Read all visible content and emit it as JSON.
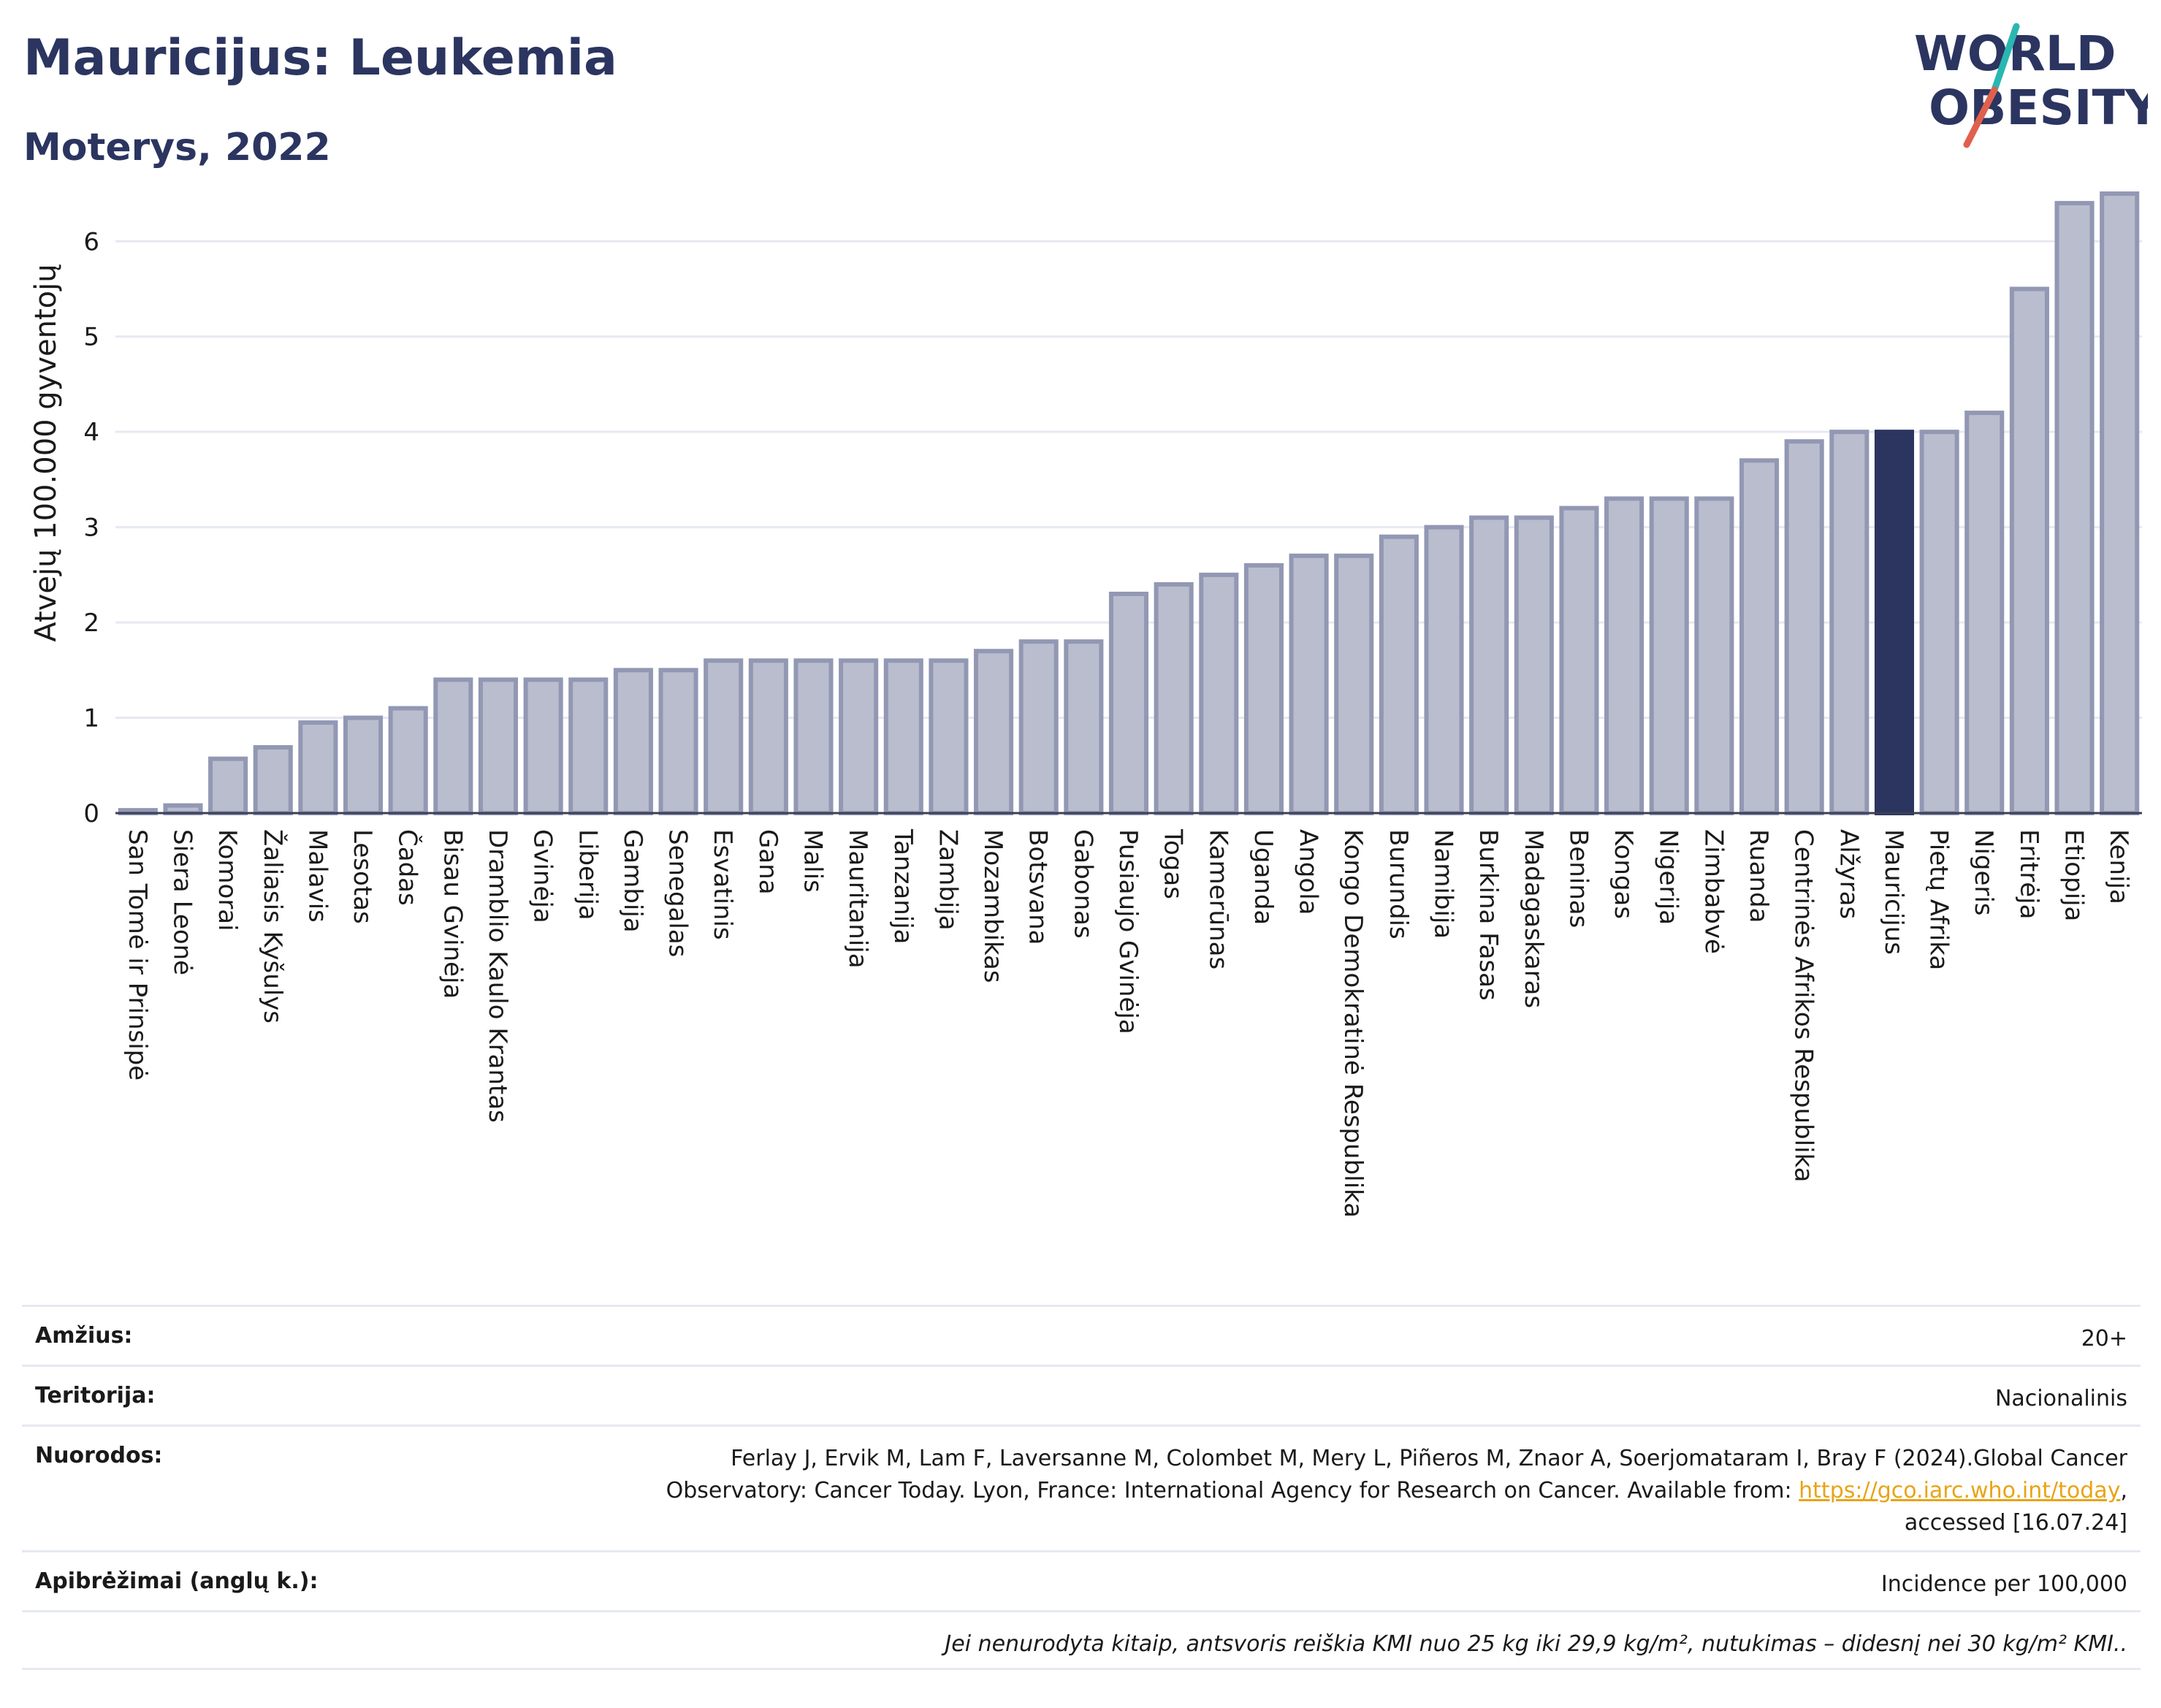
{
  "header": {
    "title": "Mauricijus: Leukemia",
    "subtitle": "Moterys, 2022"
  },
  "logo": {
    "line1": "WORLD",
    "line2": "OBESITY",
    "colors": {
      "text": "#2b3560",
      "slash_teal": "#2ab7b1",
      "slash_red": "#e0604e"
    }
  },
  "colors": {
    "bar_fill": "#b9bdcd",
    "bar_stroke": "#9298b3",
    "highlight": "#2b3560",
    "grid": "#e6e9f2",
    "title": "#2b3560"
  },
  "chart_data": {
    "type": "bar",
    "ylabel": "Atvejų 100.000 gyventojų",
    "ylim": [
      0,
      6.6
    ],
    "yticks": [
      0,
      1,
      2,
      3,
      4,
      5,
      6
    ],
    "grid": true,
    "highlight": "Mauricijus",
    "categories": [
      "San Tomė ir Prinsipė",
      "Siera Leonė",
      "Komorai",
      "Žaliasis Kyšulys",
      "Malavis",
      "Lesotas",
      "Čadas",
      "Bisau Gvinėja",
      "Dramblio Kaulo Krantas",
      "Gvinėja",
      "Liberija",
      "Gambija",
      "Senegalas",
      "Esvatinis",
      "Gana",
      "Malis",
      "Mauritanija",
      "Tanzanija",
      "Zambija",
      "Mozambikas",
      "Botsvana",
      "Gabonas",
      "Pusiaujo Gvinėja",
      "Togas",
      "Kamerūnas",
      "Uganda",
      "Angola",
      "Kongo Demokratinė Respublika",
      "Burundis",
      "Namibija",
      "Burkina Fasas",
      "Madagaskaras",
      "Beninas",
      "Kongas",
      "Nigerija",
      "Zimbabvė",
      "Ruanda",
      "Centrinės Afrikos Respublika",
      "Alžyras",
      "Mauricijus",
      "Pietų Afrika",
      "Nigeris",
      "Eritrėja",
      "Etiopija",
      "Kenija"
    ],
    "values": [
      0.03,
      0.08,
      0.57,
      0.69,
      0.95,
      1.0,
      1.1,
      1.4,
      1.4,
      1.4,
      1.4,
      1.5,
      1.5,
      1.6,
      1.6,
      1.6,
      1.6,
      1.6,
      1.6,
      1.7,
      1.8,
      1.8,
      2.3,
      2.4,
      2.5,
      2.6,
      2.7,
      2.7,
      2.9,
      3.0,
      3.1,
      3.1,
      3.2,
      3.3,
      3.3,
      3.3,
      3.7,
      3.9,
      4.0,
      4.0,
      4.0,
      4.2,
      5.5,
      6.4,
      6.5
    ]
  },
  "meta": {
    "age_label": "Amžius:",
    "age_value": "20+",
    "territory_label": "Teritorija:",
    "territory_value": "Nacionalinis",
    "refs_label": "Nuorodos:",
    "refs_line1": "Ferlay J, Ervik M, Lam F, Laversanne M, Colombet M, Mery L, Piñeros M, Znaor A, Soerjomataram I, Bray F (2024).Global Cancer",
    "refs_line2a": "Observatory: Cancer Today. Lyon, France: International Agency for Research on Cancer. Available from: ",
    "refs_link": "https://gco.iarc.who.int/today",
    "refs_line2b": ",",
    "refs_line3": "accessed [16.07.24]",
    "defs_label": "Apibrėžimai (anglų k.):",
    "defs_value": "Incidence per 100,000",
    "note": "Jei nenurodyta kitaip, antsvoris reiškia KMI nuo 25 kg iki 29,9 kg/m², nutukimas – didesnį nei 30 kg/m² KMI.."
  }
}
